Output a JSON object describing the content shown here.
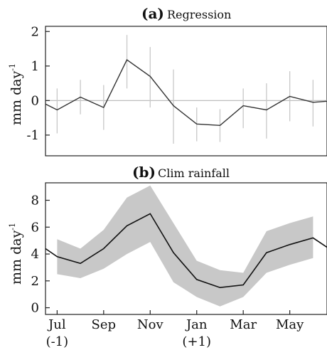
{
  "chart_data": [
    {
      "type": "line",
      "panel_letter": "(a)",
      "title": "Regression",
      "ylabel": "mm day",
      "ylabel_superscript": "-1",
      "ylim": [
        -1.6,
        2.15
      ],
      "yticks": [
        -1,
        0,
        1,
        2
      ],
      "x": [
        -0.5,
        0,
        1,
        2,
        3,
        4,
        5,
        6,
        7,
        8,
        9,
        10,
        11,
        11.6
      ],
      "values": [
        -0.1,
        -0.27,
        0.1,
        -0.2,
        1.18,
        0.7,
        -0.15,
        -0.68,
        -0.72,
        -0.15,
        -0.27,
        0.12,
        -0.05,
        -0.02
      ],
      "error_low": [
        null,
        -0.95,
        -0.4,
        -0.85,
        0.35,
        -0.2,
        -1.25,
        -1.18,
        -1.2,
        -0.8,
        -1.1,
        -0.6,
        -0.75,
        null
      ],
      "error_high": [
        null,
        0.35,
        0.6,
        0.45,
        1.9,
        1.55,
        0.9,
        -0.2,
        -0.25,
        0.35,
        0.5,
        0.85,
        0.6,
        null
      ],
      "zero_line": true,
      "color": "#333333",
      "error_color": "#c8c8c8"
    },
    {
      "type": "area",
      "panel_letter": "(b)",
      "title": "Clim rainfall",
      "ylabel": "mm day",
      "ylabel_superscript": "-1",
      "ylim": [
        -0.5,
        9.3
      ],
      "yticks": [
        0,
        2,
        4,
        6,
        8
      ],
      "x": [
        -0.5,
        0,
        1,
        2,
        3,
        4,
        5,
        6,
        7,
        8,
        9,
        10,
        11,
        11.6
      ],
      "values": [
        4.4,
        3.8,
        3.3,
        4.4,
        6.1,
        7.0,
        4.1,
        2.1,
        1.5,
        1.7,
        4.1,
        4.7,
        5.2,
        4.5
      ],
      "band_low": [
        null,
        2.5,
        2.2,
        2.9,
        4.0,
        4.9,
        1.9,
        0.8,
        0.1,
        0.8,
        2.6,
        3.2,
        3.7,
        null
      ],
      "band_high": [
        null,
        5.1,
        4.4,
        5.8,
        8.2,
        9.1,
        6.3,
        3.5,
        2.8,
        2.6,
        5.7,
        6.3,
        6.8,
        null
      ],
      "xticks": [
        {
          "x": 0,
          "label": "Jul",
          "sub": "(-1)"
        },
        {
          "x": 2,
          "label": "Sep",
          "sub": ""
        },
        {
          "x": 4,
          "label": "Nov",
          "sub": ""
        },
        {
          "x": 6,
          "label": "Jan",
          "sub": "(+1)"
        },
        {
          "x": 8,
          "label": "Mar",
          "sub": ""
        },
        {
          "x": 10,
          "label": "May",
          "sub": ""
        }
      ],
      "color": "#111111",
      "band_color": "#c8c8c8"
    }
  ]
}
